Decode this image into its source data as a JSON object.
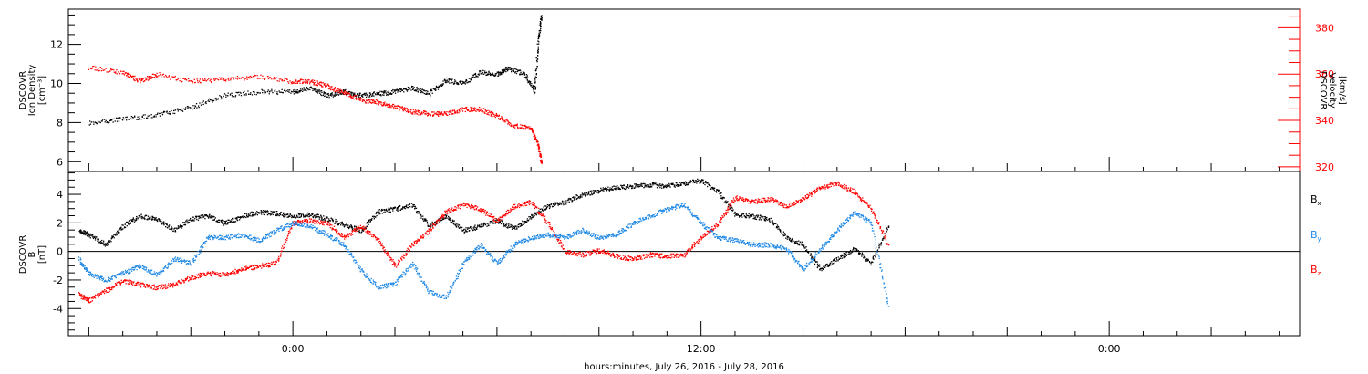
{
  "chart_data": [
    {
      "type": "scatter",
      "panel": "top",
      "ylabel_left": [
        "DSCOVR",
        "Ion Density",
        "[cm⁻³]"
      ],
      "ylabel_right": [
        "DSCOVR",
        "Velocity",
        "[km/s]"
      ],
      "y_left_ticks": [
        "6",
        "8",
        "10",
        "12"
      ],
      "y_right_ticks": [
        "320",
        "340",
        "360",
        "380"
      ],
      "ylim_left": [
        5.5,
        13.8
      ],
      "ylim_right": [
        318,
        388
      ],
      "series": [
        {
          "color": "#000000",
          "axis": "left",
          "x": [
            -6.0,
            -5.0,
            -4.0,
            -3.0,
            -2.0,
            -1.0,
            0.0,
            0.5,
            1.0,
            1.5,
            2.0,
            2.5,
            3.0,
            3.5,
            4.0,
            4.5,
            5.0,
            5.5,
            6.0,
            6.3,
            6.8,
            7.1,
            7.2,
            7.3
          ],
          "y": [
            8.0,
            8.2,
            8.4,
            8.8,
            9.4,
            9.6,
            9.6,
            9.8,
            9.4,
            9.6,
            9.4,
            9.5,
            9.6,
            9.8,
            9.5,
            10.2,
            10.0,
            10.6,
            10.5,
            10.8,
            10.5,
            9.6,
            12.2,
            13.5
          ]
        },
        {
          "color": "#ff0000",
          "axis": "right",
          "x": [
            -6.0,
            -5.0,
            -4.5,
            -4.0,
            -3.0,
            -2.0,
            -1.0,
            0.0,
            0.5,
            1.0,
            1.5,
            2.0,
            2.5,
            3.0,
            3.5,
            4.0,
            4.5,
            5.0,
            5.5,
            6.0,
            6.5,
            7.0,
            7.2,
            7.3
          ],
          "y": [
            363,
            361,
            357,
            360,
            357,
            358,
            359,
            357,
            357,
            355,
            352,
            349,
            348,
            346,
            344,
            343,
            343,
            345,
            345,
            342,
            338,
            337,
            330,
            322
          ]
        }
      ]
    },
    {
      "type": "scatter",
      "panel": "bottom",
      "ylabel_left": [
        "DSCOVR",
        "B",
        "[nT]"
      ],
      "y_ticks": [
        "-4",
        "-2",
        "0",
        "2",
        "4"
      ],
      "ylim": [
        -5.9,
        5.6
      ],
      "legend": [
        "Bx",
        "By",
        "Bz"
      ],
      "series": [
        {
          "name": "Bx",
          "color": "#000000",
          "x": [
            -6.3,
            -6.0,
            -5.5,
            -5.0,
            -4.5,
            -4.0,
            -3.5,
            -3.0,
            -2.5,
            -2.0,
            -1.5,
            -1.0,
            -0.5,
            0.0,
            0.5,
            1.0,
            1.5,
            2.0,
            2.5,
            3.0,
            3.5,
            4.0,
            4.5,
            5.0,
            5.5,
            6.0,
            6.5,
            7.0,
            7.5,
            8.0,
            8.5,
            9.0,
            9.5,
            10.0,
            10.5,
            11.0,
            11.5,
            12.0,
            12.5,
            13.0,
            13.5,
            14.0,
            14.5,
            15.0,
            15.5,
            16.0,
            16.5,
            17.0,
            17.5
          ],
          "y": [
            1.5,
            1.2,
            0.5,
            1.8,
            2.5,
            2.3,
            1.5,
            2.3,
            2.5,
            2.0,
            2.5,
            2.8,
            2.7,
            2.5,
            2.6,
            2.3,
            1.9,
            1.5,
            2.8,
            3.0,
            3.3,
            1.8,
            2.5,
            1.5,
            1.8,
            2.2,
            1.6,
            2.5,
            3.2,
            3.5,
            4.0,
            4.3,
            4.5,
            4.6,
            4.7,
            4.6,
            4.8,
            5.0,
            4.2,
            2.6,
            2.5,
            2.3,
            1.0,
            0.5,
            -1.2,
            -0.5,
            0.2,
            -0.8,
            1.8
          ]
        },
        {
          "name": "By",
          "color": "#1e88e5",
          "x": [
            -6.3,
            -6.0,
            -5.5,
            -5.0,
            -4.5,
            -4.0,
            -3.5,
            -3.0,
            -2.5,
            -2.0,
            -1.5,
            -1.0,
            -0.5,
            0.0,
            0.5,
            1.0,
            1.5,
            2.0,
            2.5,
            3.0,
            3.5,
            4.0,
            4.5,
            5.0,
            5.5,
            6.0,
            6.5,
            7.0,
            7.5,
            8.0,
            8.5,
            9.0,
            9.5,
            10.0,
            10.5,
            11.0,
            11.5,
            12.0,
            12.5,
            13.0,
            13.5,
            14.0,
            14.5,
            15.0,
            15.5,
            16.0,
            16.5,
            17.0,
            17.5
          ],
          "y": [
            -0.5,
            -1.5,
            -2.0,
            -1.5,
            -1.0,
            -1.6,
            -0.5,
            -0.8,
            1.0,
            1.0,
            1.2,
            0.8,
            1.5,
            2.0,
            1.8,
            1.2,
            0.5,
            -1.3,
            -2.5,
            -2.2,
            -0.8,
            -2.8,
            -3.2,
            -0.8,
            0.5,
            -0.8,
            0.5,
            1.0,
            1.2,
            1.0,
            1.5,
            1.0,
            1.2,
            2.0,
            2.5,
            3.0,
            3.3,
            2.0,
            1.0,
            0.8,
            0.5,
            0.5,
            0.2,
            -1.2,
            0.2,
            1.5,
            2.8,
            2.0,
            -3.8
          ]
        },
        {
          "name": "Bz",
          "color": "#ff0000",
          "x": [
            -6.3,
            -6.0,
            -5.5,
            -5.0,
            -4.5,
            -4.0,
            -3.5,
            -3.0,
            -2.5,
            -2.0,
            -1.5,
            -1.0,
            -0.5,
            0.0,
            0.5,
            1.0,
            1.5,
            2.0,
            2.5,
            3.0,
            3.5,
            4.0,
            4.5,
            5.0,
            5.5,
            6.0,
            6.5,
            7.0,
            7.5,
            8.0,
            8.5,
            9.0,
            9.5,
            10.0,
            10.5,
            11.0,
            11.5,
            12.0,
            12.5,
            13.0,
            13.5,
            14.0,
            14.5,
            15.0,
            15.5,
            16.0,
            16.5,
            17.0,
            17.5
          ],
          "y": [
            -3.0,
            -3.4,
            -2.7,
            -2.0,
            -2.3,
            -2.5,
            -2.3,
            -1.8,
            -1.5,
            -1.6,
            -1.2,
            -1.0,
            -0.8,
            2.0,
            2.2,
            2.0,
            1.0,
            1.8,
            0.8,
            -1.0,
            0.5,
            1.5,
            2.8,
            3.3,
            3.0,
            2.2,
            3.2,
            3.5,
            2.0,
            0.0,
            -0.2,
            0.1,
            -0.3,
            -0.5,
            -0.2,
            -0.3,
            -0.2,
            1.0,
            2.0,
            3.8,
            3.5,
            3.7,
            3.2,
            3.7,
            4.5,
            4.8,
            4.2,
            3.0,
            0.5
          ]
        }
      ]
    }
  ],
  "x_axis": {
    "xlim": [
      -6.6,
      29.6
    ],
    "ticks": [
      "0:00",
      "12:00",
      "0:00"
    ],
    "xlabel": "hours:minutes, July 26, 2016 - July 28, 2016"
  },
  "legend_labels": {
    "bx": {
      "main": "B",
      "sub": "x",
      "color": "#000000"
    },
    "by": {
      "main": "B",
      "sub": "y",
      "color": "#1e88e5"
    },
    "bz": {
      "main": "B",
      "sub": "z",
      "color": "#ff0000"
    }
  }
}
